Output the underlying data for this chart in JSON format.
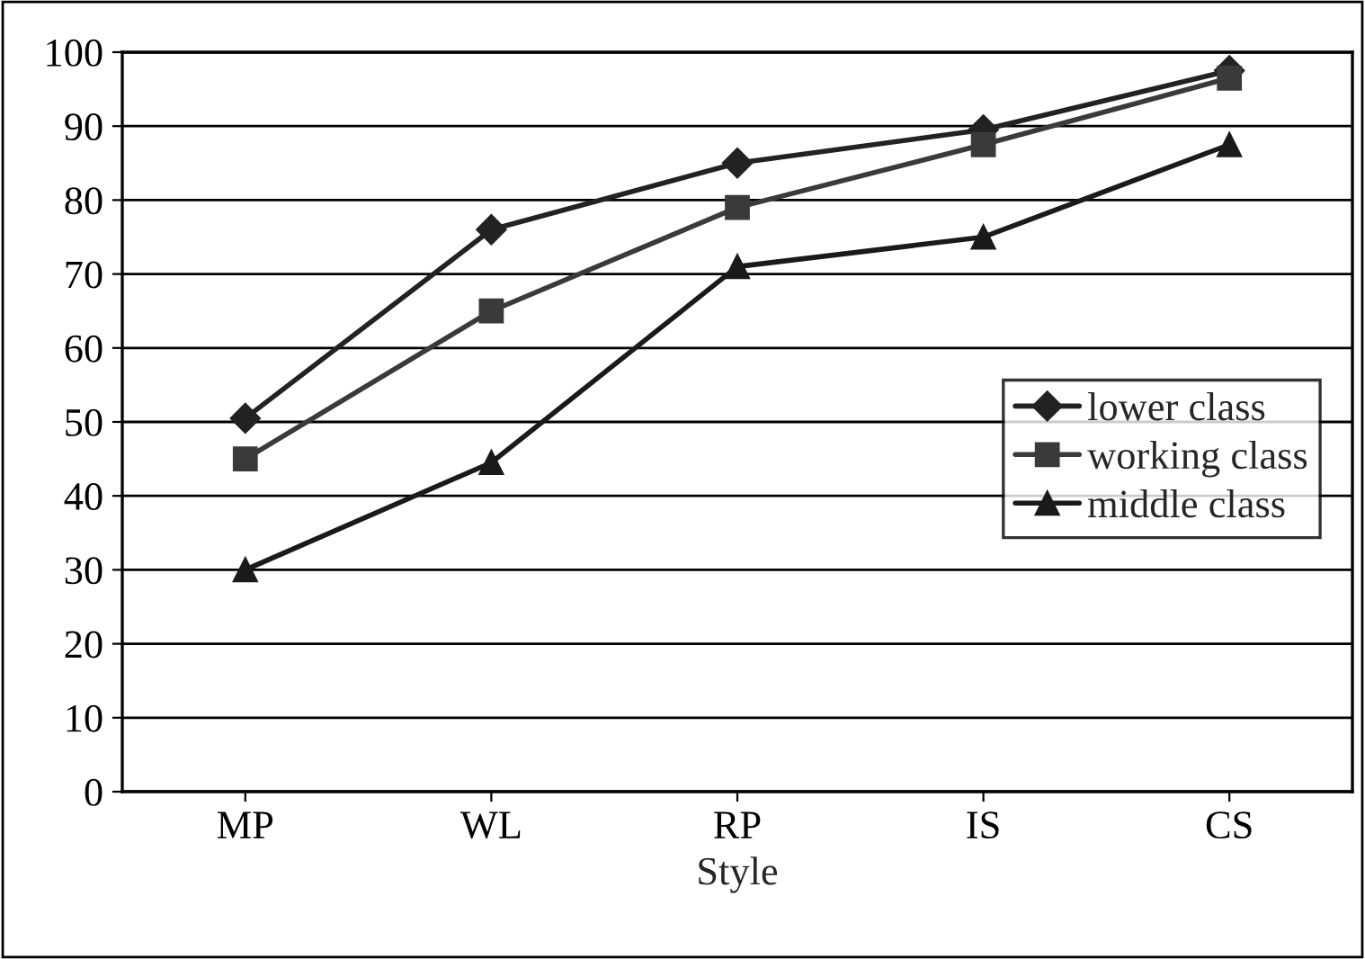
{
  "chart_data": {
    "type": "line",
    "xlabel": "Style",
    "categories": [
      "MP",
      "WL",
      "RP",
      "IS",
      "CS"
    ],
    "series": [
      {
        "name": "lower class",
        "color": "#222222",
        "marker": "diamond",
        "values": [
          50.5,
          76,
          85,
          89.5,
          97.5
        ]
      },
      {
        "name": "working class",
        "color": "#3a3a3a",
        "marker": "square",
        "values": [
          45,
          65,
          79,
          87.5,
          96.5
        ]
      },
      {
        "name": "middle class",
        "color": "#1a1a1a",
        "marker": "triangle",
        "values": [
          30,
          44.5,
          71,
          75,
          87.5
        ]
      }
    ],
    "ylim": [
      0,
      100
    ],
    "yticks": [
      0,
      10,
      20,
      30,
      40,
      50,
      60,
      70,
      80,
      90,
      100
    ],
    "grid": "y",
    "legend": "right",
    "line_style": "solid"
  }
}
